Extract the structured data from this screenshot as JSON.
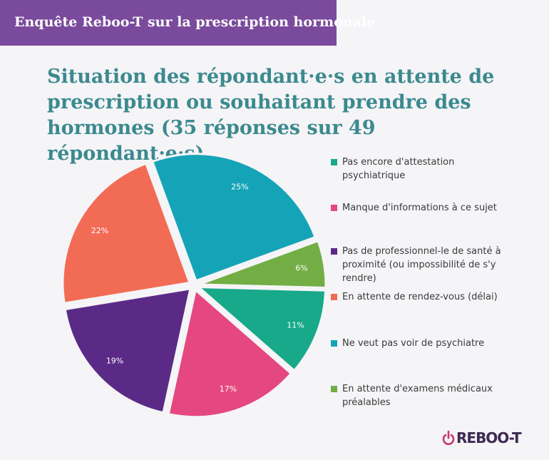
{
  "banner": {
    "text": "Enquête Reboo-T sur la prescription hormonale"
  },
  "title": "Situation des répondant·e·s en attente de prescription ou souhaitant prendre des hormones (35 réponses sur 49 répondant·e·s)",
  "logo": {
    "text": "REBOO-T"
  },
  "colors": {
    "banner_bg": "#7a4a9c",
    "title": "#3b8a8e",
    "background": "#f5f4f7"
  },
  "chart_data": {
    "type": "pie",
    "categories": [
      "Pas encore d'attestation psychiatrique",
      "Manque d'informations à ce sujet",
      "Pas de professionnel·le de santé à proximité (ou impossibilité de s'y rendre)",
      "En attente de rendez-vous (délai)",
      "Ne veut pas voir de psychiatre",
      "En attente d'examens médicaux préalables"
    ],
    "legend_labels": [
      "Pas encore d'attestation psychiatrique",
      "Manque d'informations à ce sujet",
      "Pas de professionnel-le de santé à proximité (ou impossibilité de s'y rendre)",
      "En attente de rendez-vous (délai)",
      "Ne veut pas voir de psychiatre",
      "En attente d'examens médicaux préalables"
    ],
    "values": [
      11,
      17,
      19,
      22,
      25,
      6
    ],
    "data_labels": [
      "11%",
      "17%",
      "19%",
      "22%",
      "25%",
      "6%"
    ],
    "colors": [
      "#17a98a",
      "#e5487e",
      "#5b2a86",
      "#f26b55",
      "#15a4b7",
      "#72ae44"
    ],
    "legend_placement": "right",
    "title": "Situation des répondant·e·s en attente de prescription ou souhaitant prendre des hormones (35 réponses sur 49 répondant·e·s)"
  }
}
